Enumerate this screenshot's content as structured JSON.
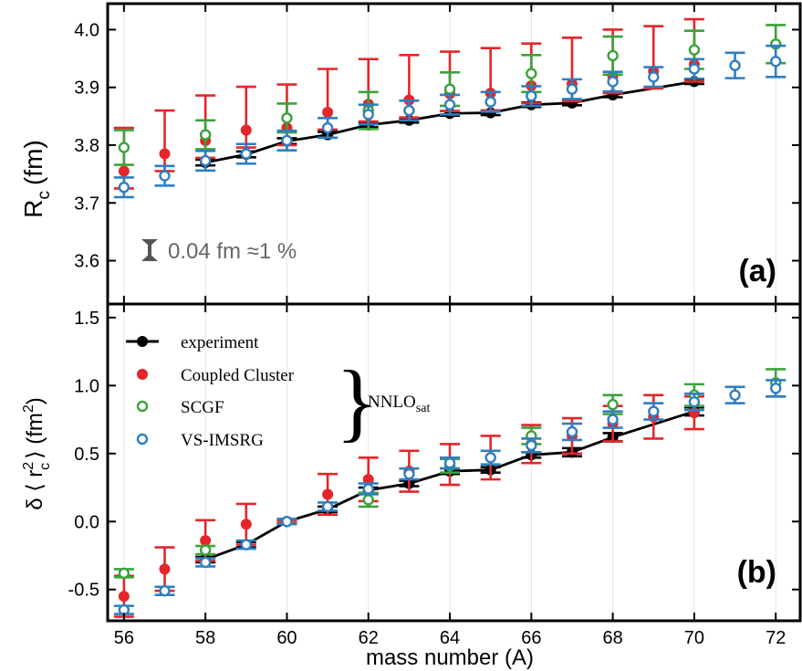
{
  "chart_data": [
    {
      "type": "scatter",
      "panel_label": "(a)",
      "ylabel": "R",
      "ylabel_sub": "c",
      "ylabel_unit": "(fm)",
      "xlabel": "mass number (A)",
      "xlim": [
        55.6,
        72.6
      ],
      "ylim": [
        3.525,
        4.045
      ],
      "x_ticks": [
        56,
        58,
        60,
        62,
        64,
        66,
        68,
        70,
        72
      ],
      "x_tick_labels": [
        "56",
        "58",
        "60",
        "62",
        "64",
        "66",
        "68",
        "70",
        "72"
      ],
      "y_ticks": [
        3.6,
        3.7,
        3.8,
        3.9,
        4.0
      ],
      "y_tick_labels": [
        "3.6",
        "3.7",
        "3.8",
        "3.9",
        "4.0"
      ],
      "annotation": "0.04 fm ≈1 %",
      "series": [
        {
          "name": "experiment",
          "color": "#000000",
          "marker": "filled-circle",
          "line": true,
          "x": [
            58,
            59,
            60,
            61,
            62,
            63,
            64,
            65,
            66,
            67,
            68,
            70
          ],
          "y": [
            3.77,
            3.784,
            3.807,
            3.818,
            3.835,
            3.843,
            3.855,
            3.856,
            3.87,
            3.873,
            3.887,
            3.91
          ],
          "err": [
            0.005,
            0.005,
            0.005,
            0.005,
            0.004,
            0.004,
            0.004,
            0.004,
            0.004,
            0.004,
            0.004,
            0.004
          ]
        },
        {
          "name": "Coupled Cluster",
          "color": "#e3262b",
          "marker": "filled-circle",
          "x": [
            56,
            57,
            58,
            59,
            60,
            61,
            62,
            63,
            64,
            65,
            66,
            67,
            68,
            69,
            70
          ],
          "y": [
            3.755,
            3.785,
            3.808,
            3.826,
            3.83,
            3.857,
            3.871,
            3.878,
            3.889,
            3.89,
            3.903,
            3.906,
            3.92,
            3.928,
            3.94
          ],
          "err_low": [
            0.03,
            0.03,
            0.03,
            0.03,
            0.03,
            0.03,
            0.03,
            0.03,
            0.03,
            0.03,
            0.03,
            0.03,
            0.03,
            0.03,
            0.03
          ],
          "err_high": [
            0.075,
            0.075,
            0.078,
            0.075,
            0.075,
            0.075,
            0.078,
            0.078,
            0.073,
            0.078,
            0.073,
            0.08,
            0.08,
            0.078,
            0.078
          ]
        },
        {
          "name": "SCGF",
          "color": "#3aa23a",
          "marker": "open-circle",
          "x": [
            56,
            58,
            60,
            62,
            64,
            66,
            68,
            70,
            72
          ],
          "y": [
            3.796,
            3.818,
            3.847,
            3.86,
            3.897,
            3.924,
            3.955,
            3.965,
            3.975
          ],
          "err": [
            0.03,
            0.025,
            0.025,
            0.032,
            0.029,
            0.032,
            0.033,
            0.033,
            0.033
          ]
        },
        {
          "name": "VS-IMSRG",
          "color": "#2f7ec0",
          "marker": "open-circle",
          "x": [
            56,
            57,
            58,
            59,
            60,
            61,
            62,
            63,
            64,
            65,
            66,
            67,
            68,
            69,
            70,
            71,
            72
          ],
          "y": [
            3.727,
            3.747,
            3.773,
            3.785,
            3.808,
            3.83,
            3.853,
            3.86,
            3.87,
            3.875,
            3.885,
            3.897,
            3.91,
            3.918,
            3.932,
            3.938,
            3.945
          ],
          "err": [
            0.017,
            0.017,
            0.017,
            0.017,
            0.017,
            0.017,
            0.017,
            0.017,
            0.017,
            0.017,
            0.017,
            0.017,
            0.017,
            0.017,
            0.017,
            0.022,
            0.027
          ]
        }
      ]
    },
    {
      "type": "scatter",
      "panel_label": "(b)",
      "ylabel": "δ ⟨ r",
      "ylabel_sup": "2",
      "ylabel_sub": "c",
      "ylabel_tail": "⟩ (fm",
      "ylabel_tail_sup": "2",
      "ylabel_end": ")",
      "xlabel": "mass number (A)",
      "xlim": [
        55.6,
        72.6
      ],
      "ylim": [
        -0.73,
        1.6
      ],
      "x_ticks": [
        56,
        58,
        60,
        62,
        64,
        66,
        68,
        70,
        72
      ],
      "x_tick_labels": [
        "56",
        "58",
        "60",
        "62",
        "64",
        "66",
        "68",
        "70",
        "72"
      ],
      "y_ticks": [
        -0.5,
        0.0,
        0.5,
        1.0,
        1.5
      ],
      "y_tick_labels": [
        "-0.5",
        "0.0",
        "0.5",
        "1.0",
        "1.5"
      ],
      "legend_entries": [
        "experiment",
        "Coupled Cluster",
        "SCGF",
        "VS-IMSRG"
      ],
      "legend_group_label": "NNLO",
      "legend_group_sub": "sat",
      "series": [
        {
          "name": "experiment",
          "color": "#000000",
          "marker": "filled-circle",
          "line": true,
          "x": [
            58,
            59,
            60,
            61,
            62,
            63,
            64,
            65,
            66,
            67,
            68,
            70
          ],
          "y": [
            -0.28,
            -0.17,
            0.0,
            0.09,
            0.23,
            0.28,
            0.37,
            0.38,
            0.49,
            0.51,
            0.62,
            0.81
          ],
          "err": [
            0.02,
            0.02,
            0.01,
            0.02,
            0.02,
            0.02,
            0.02,
            0.02,
            0.02,
            0.03,
            0.03,
            0.03
          ]
        },
        {
          "name": "Coupled Cluster",
          "color": "#e3262b",
          "marker": "filled-circle",
          "x": [
            56,
            57,
            58,
            59,
            60,
            61,
            62,
            63,
            64,
            65,
            66,
            67,
            68,
            69,
            70
          ],
          "y": [
            -0.55,
            -0.35,
            -0.14,
            -0.02,
            0.0,
            0.2,
            0.31,
            0.37,
            0.42,
            0.47,
            0.57,
            0.63,
            0.72,
            0.77,
            0.8
          ],
          "err": [
            0.15,
            0.16,
            0.15,
            0.15,
            0.01,
            0.15,
            0.16,
            0.15,
            0.15,
            0.16,
            0.14,
            0.13,
            0.13,
            0.16,
            0.12
          ]
        },
        {
          "name": "SCGF",
          "color": "#3aa23a",
          "marker": "open-circle",
          "x": [
            56,
            58,
            60,
            62,
            64,
            66,
            68,
            70,
            72
          ],
          "y": [
            -0.38,
            -0.21,
            0.0,
            0.16,
            0.41,
            0.63,
            0.86,
            0.93,
            1.02
          ],
          "err": [
            0.03,
            0.03,
            0.02,
            0.05,
            0.05,
            0.06,
            0.07,
            0.08,
            0.1
          ]
        },
        {
          "name": "VS-IMSRG",
          "color": "#2f7ec0",
          "marker": "open-circle",
          "x": [
            56,
            57,
            58,
            59,
            60,
            61,
            62,
            63,
            64,
            65,
            66,
            67,
            68,
            69,
            70,
            71,
            72
          ],
          "y": [
            -0.65,
            -0.51,
            -0.3,
            -0.17,
            0.0,
            0.11,
            0.24,
            0.35,
            0.43,
            0.47,
            0.56,
            0.66,
            0.75,
            0.81,
            0.88,
            0.93,
            0.98
          ],
          "err": [
            0.03,
            0.03,
            0.03,
            0.03,
            0.02,
            0.03,
            0.04,
            0.04,
            0.04,
            0.05,
            0.05,
            0.06,
            0.06,
            0.06,
            0.06,
            0.06,
            0.06
          ]
        }
      ]
    }
  ]
}
